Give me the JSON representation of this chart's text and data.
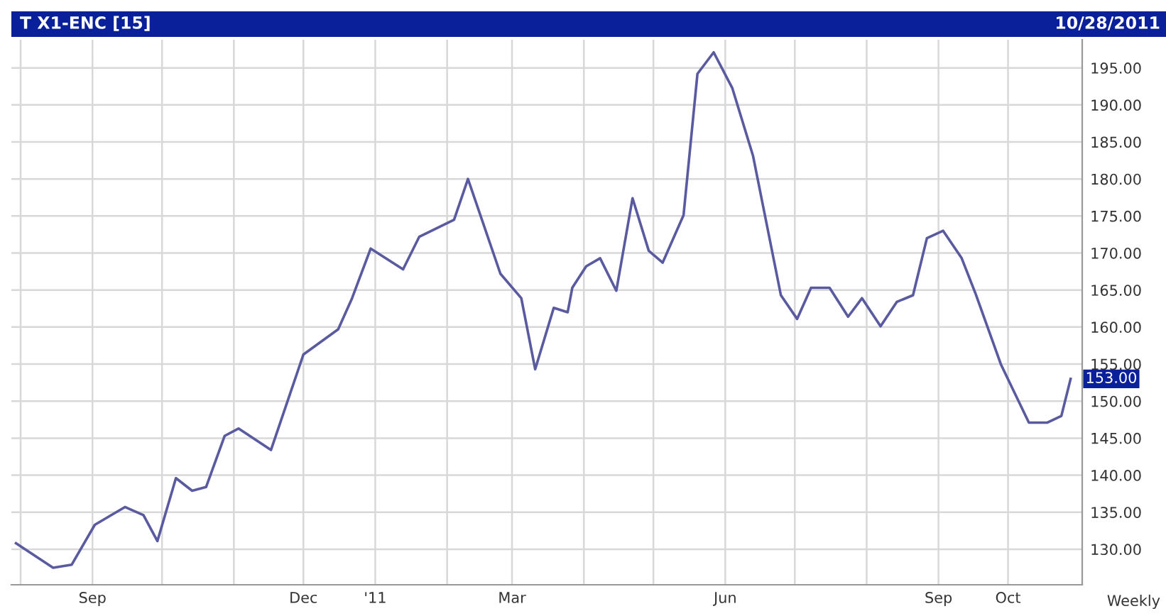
{
  "chart_data": {
    "type": "line",
    "title": "T X1-ENC [15]",
    "subtitle": "10/28/2011",
    "x": [
      "2010-07-30",
      "2010-08-15",
      "2010-08-23",
      "2010-09-02",
      "2010-09-15",
      "2010-09-23",
      "2010-09-29",
      "2010-10-07",
      "2010-10-14",
      "2010-10-20",
      "2010-10-28",
      "2010-11-03",
      "2010-11-17",
      "2010-12-01",
      "2010-12-16",
      "2010-12-22",
      "2010-12-30",
      "2011-01-13",
      "2011-01-20",
      "2011-02-04",
      "2011-02-10",
      "2011-02-24",
      "2011-03-05",
      "2011-03-11",
      "2011-03-19",
      "2011-03-25",
      "2011-03-27",
      "2011-04-02",
      "2011-04-08",
      "2011-04-15",
      "2011-04-22",
      "2011-04-29",
      "2011-05-05",
      "2011-05-14",
      "2011-05-20",
      "2011-05-27",
      "2011-06-04",
      "2011-06-13",
      "2011-06-25",
      "2011-07-02",
      "2011-07-08",
      "2011-07-16",
      "2011-07-24",
      "2011-07-30",
      "2011-08-07",
      "2011-08-14",
      "2011-08-21",
      "2011-08-27",
      "2011-09-03",
      "2011-09-11",
      "2011-09-17",
      "2011-09-28",
      "2011-10-10",
      "2011-10-18",
      "2011-10-24",
      "2011-10-28"
    ],
    "series": [
      {
        "color": "#5a5aa0",
        "values": [
          130.8,
          127.5,
          127.9,
          133.3,
          135.7,
          134.6,
          131.1,
          139.6,
          137.9,
          138.4,
          145.3,
          146.3,
          143.4,
          156.3,
          159.7,
          163.9,
          170.6,
          167.8,
          172.2,
          174.5,
          180.0,
          167.2,
          163.9,
          154.3,
          162.6,
          162.0,
          165.3,
          168.2,
          169.3,
          164.9,
          177.4,
          170.3,
          168.7,
          175.1,
          194.2,
          197.1,
          192.3,
          183.1,
          164.3,
          161.1,
          165.3,
          165.3,
          161.4,
          163.9,
          160.1,
          163.4,
          164.3,
          172.0,
          173.0,
          169.3,
          164.5,
          154.9,
          147.1,
          147.1,
          148.0,
          153.0
        ]
      }
    ],
    "xlim": [
      "2010-07-28",
      "2011-11-02"
    ],
    "xticks": [
      {
        "value": "2010-08-01",
        "label": null
      },
      {
        "value": "2010-09-01",
        "label": "Sep"
      },
      {
        "value": "2010-10-01",
        "label": null
      },
      {
        "value": "2010-11-01",
        "label": null
      },
      {
        "value": "2010-12-01",
        "label": "Dec"
      },
      {
        "value": "2011-01-01",
        "label": "'11"
      },
      {
        "value": "2011-02-01",
        "label": null
      },
      {
        "value": "2011-03-01",
        "label": "Mar"
      },
      {
        "value": "2011-04-01",
        "label": null
      },
      {
        "value": "2011-05-01",
        "label": null
      },
      {
        "value": "2011-06-01",
        "label": "Jun"
      },
      {
        "value": "2011-07-01",
        "label": null
      },
      {
        "value": "2011-08-01",
        "label": null
      },
      {
        "value": "2011-09-01",
        "label": "Sep"
      },
      {
        "value": "2011-10-01",
        "label": "Oct"
      }
    ],
    "ylim": [
      125.2,
      198.8
    ],
    "yticks": [
      {
        "value": 130,
        "label": "130.00"
      },
      {
        "value": 135,
        "label": "135.00"
      },
      {
        "value": 140,
        "label": "140.00"
      },
      {
        "value": 145,
        "label": "145.00"
      },
      {
        "value": 150,
        "label": "150.00"
      },
      {
        "value": 155,
        "label": "155.00"
      },
      {
        "value": 160,
        "label": "160.00"
      },
      {
        "value": 165,
        "label": "165.00"
      },
      {
        "value": 170,
        "label": "170.00"
      },
      {
        "value": 175,
        "label": "175.00"
      },
      {
        "value": 180,
        "label": "180.00"
      },
      {
        "value": 185,
        "label": "185.00"
      },
      {
        "value": 190,
        "label": "190.00"
      },
      {
        "value": 195,
        "label": "195.00"
      }
    ],
    "annotations": [
      {
        "text": "153.00",
        "x": "2011-10-28",
        "y": 153.0
      },
      "Weekly"
    ],
    "grid": true,
    "legend": false,
    "marker": "none",
    "line_style": "solid"
  }
}
